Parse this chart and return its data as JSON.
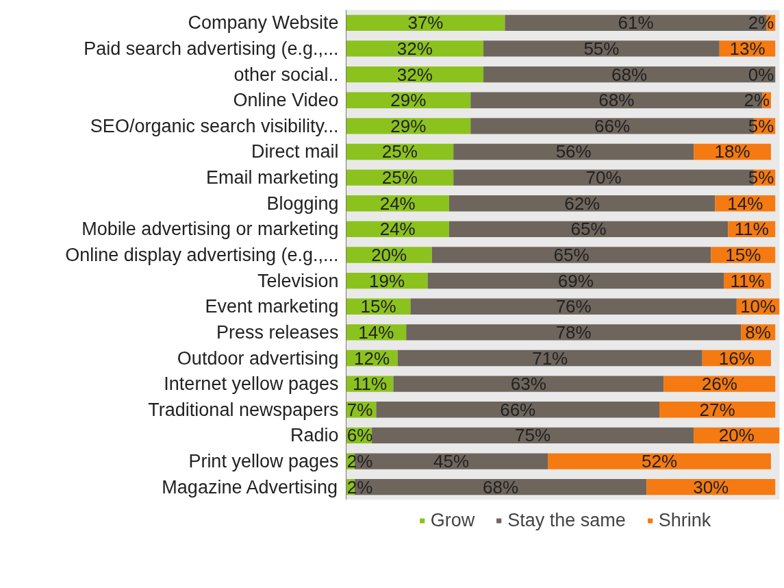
{
  "chart_data": {
    "type": "bar",
    "orientation": "horizontal",
    "stacked": true,
    "categories": [
      "Company Website",
      "Paid search advertising (e.g.,...",
      "other social..",
      "Online Video",
      "SEO/organic search visibility...",
      "Direct mail",
      "Email marketing",
      "Blogging",
      "Mobile advertising or marketing",
      "Online display advertising (e.g.,...",
      "Television",
      "Event marketing",
      "Press releases",
      "Outdoor advertising",
      "Internet yellow pages",
      "Traditional newspapers",
      "Radio",
      "Print yellow pages",
      "Magazine Advertising"
    ],
    "series": [
      {
        "name": "Grow",
        "color": "#8cc21e",
        "values": [
          37,
          32,
          32,
          29,
          29,
          25,
          25,
          24,
          24,
          20,
          19,
          15,
          14,
          12,
          11,
          7,
          6,
          2,
          2
        ],
        "value_labels": [
          "37%",
          "32%",
          "32%",
          "29%",
          "29%",
          "25%",
          "25%",
          "24%",
          "24%",
          "20%",
          "19%",
          "15%",
          "14%",
          "12%",
          "11%",
          "7%",
          "6%",
          "2%",
          "2%"
        ]
      },
      {
        "name": "Stay the same",
        "color": "#6e655d",
        "values": [
          61,
          55,
          68,
          68,
          66,
          56,
          70,
          62,
          65,
          65,
          69,
          76,
          78,
          71,
          63,
          66,
          75,
          45,
          68
        ],
        "value_labels": [
          "61%",
          "55%",
          "68%",
          "68%",
          "66%",
          "56%",
          "70%",
          "62%",
          "65%",
          "65%",
          "69%",
          "76%",
          "78%",
          "71%",
          "63%",
          "66%",
          "75%",
          "45%",
          "68%"
        ]
      },
      {
        "name": "Shrink",
        "color": "#f57a12",
        "values": [
          2,
          13,
          0,
          2,
          5,
          18,
          5,
          14,
          11,
          15,
          11,
          10,
          8,
          16,
          26,
          27,
          20,
          52,
          30
        ],
        "value_labels": [
          "2%",
          "13%",
          "0%",
          "2%",
          "5%",
          "18%",
          "5%",
          "14%",
          "11%",
          "15%",
          "11%",
          "10%",
          "8%",
          "16%",
          "26%",
          "27%",
          "20%",
          "52%",
          "30%"
        ]
      }
    ],
    "tick_labels": "y",
    "legend": "bottom"
  }
}
